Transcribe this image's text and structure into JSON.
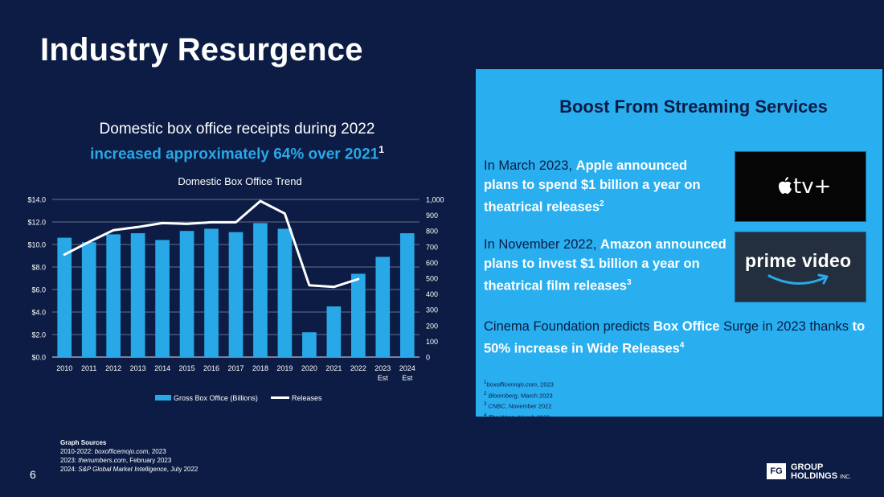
{
  "slide": {
    "title": "Industry Resurgence",
    "page_number": "6"
  },
  "headline": {
    "line1": "Domestic box office receipts during 2022",
    "line2": "increased approximately 64% over 2021",
    "sup": "1"
  },
  "chart_data": {
    "type": "bar",
    "title": "Domestic Box Office Trend",
    "categories": [
      "2010",
      "2011",
      "2012",
      "2013",
      "2014",
      "2015",
      "2016",
      "2017",
      "2018",
      "2019",
      "2020",
      "2021",
      "2022",
      "2023",
      "2024"
    ],
    "category_sublabels": [
      "",
      "",
      "",
      "",
      "",
      "",
      "",
      "",
      "",
      "",
      "",
      "",
      "",
      "Est",
      "Est"
    ],
    "series": [
      {
        "name": "Gross Box Office (Billions)",
        "kind": "bar",
        "axis": "left",
        "color": "#29a8e8",
        "values": [
          10.6,
          10.2,
          10.9,
          11.0,
          10.4,
          11.2,
          11.4,
          11.1,
          11.9,
          11.4,
          2.2,
          4.5,
          7.4,
          8.9,
          11.0
        ]
      },
      {
        "name": "Releases",
        "kind": "line",
        "axis": "right",
        "color": "#ffffff",
        "values": [
          650,
          730,
          805,
          825,
          850,
          845,
          855,
          855,
          990,
          910,
          455,
          445,
          495,
          null,
          null
        ]
      }
    ],
    "left_axis": {
      "min": 0,
      "max": 14,
      "step": 2,
      "tick_labels": [
        "$0.0",
        "$2.0",
        "$4.0",
        "$6.0",
        "$8.0",
        "$10.0",
        "$12.0",
        "$14.0"
      ]
    },
    "right_axis": {
      "min": 0,
      "max": 1000,
      "step": 100,
      "tick_labels": [
        "0",
        "100",
        "200",
        "300",
        "400",
        "500",
        "600",
        "700",
        "800",
        "900",
        "1,000"
      ]
    },
    "legend_position": "bottom",
    "grid": true
  },
  "graph_sources": {
    "title": "Graph Sources",
    "lines": [
      {
        "prefix": "2010-2022: ",
        "source": "boxofficemojo.com",
        "suffix": ", 2023"
      },
      {
        "prefix": "2023: ",
        "source": "thenumbers.com",
        "suffix": ", February 2023"
      },
      {
        "prefix": "2024: ",
        "source": "S&P Global Market Intelligence",
        "suffix": ", July 2022"
      }
    ]
  },
  "panel": {
    "heading": "Boost From Streaming Services",
    "point1": {
      "normal": "In March 2023, ",
      "bold": "Apple announced plans to spend $1 billion a year on theatrical releases",
      "sup": "2"
    },
    "point2": {
      "normal": "In November 2022, ",
      "bold": "Amazon announced plans to invest $1 billion a year on theatrical film releases",
      "sup": "3"
    },
    "point3": {
      "a": "Cinema Foundation predicts ",
      "b": "Box Office",
      "c": " Surge in 2023 thanks ",
      "d": "to 50% increase in Wide Releases",
      "sup": "4"
    },
    "logos": {
      "apple": "tv+",
      "amazon": "prime video"
    },
    "footnotes": [
      {
        "num": "1",
        "source": "boxofficemojo.com",
        "suffix": ", 2023"
      },
      {
        "num": "2",
        "source": "Bloomberg",
        "suffix": ", March 2023"
      },
      {
        "num": "3",
        "source": "CNBC",
        "suffix": ", November 2022"
      },
      {
        "num": "4",
        "source": "The Wrap",
        "suffix": ", March 2023"
      }
    ]
  },
  "company_logo": {
    "mark": "FG",
    "line1": "GROUP",
    "line2": "HOLDINGS",
    "suffix": "INC."
  },
  "colors": {
    "background": "#0c1c44",
    "accent": "#29a8e8",
    "panel": "#29aff0"
  }
}
